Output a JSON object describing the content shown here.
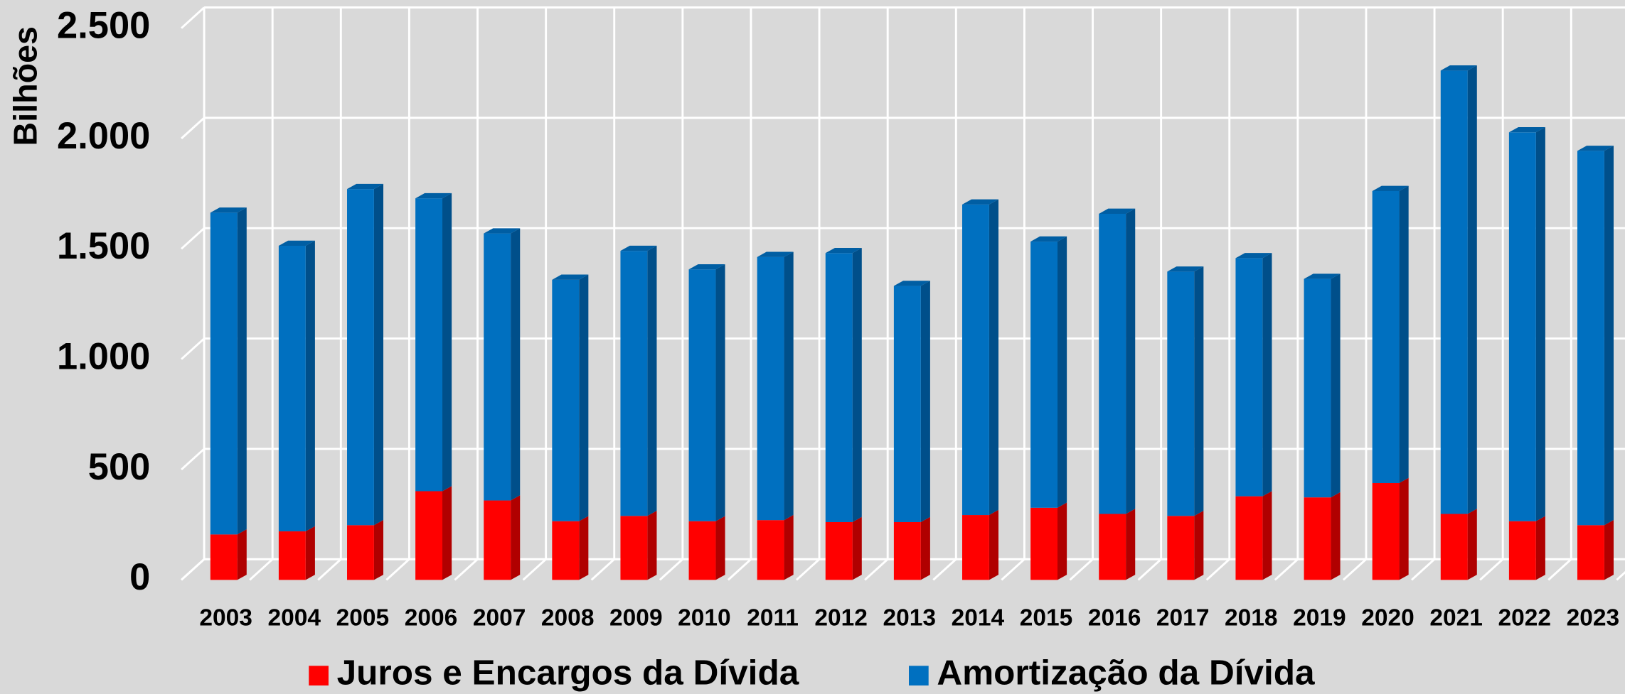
{
  "chart_data": {
    "type": "bar",
    "stacked": true,
    "y_label": "Bilhões",
    "categories": [
      "2003",
      "2004",
      "2005",
      "2006",
      "2007",
      "2008",
      "2009",
      "2010",
      "2011",
      "2012",
      "2013",
      "2014",
      "2015",
      "2016",
      "2017",
      "2018",
      "2019",
      "2020",
      "2021",
      "2022",
      "2023"
    ],
    "series": [
      {
        "name": "Juros e Encargos da Dívida",
        "color": "#ff0000",
        "values": [
          206,
          220,
          248,
          402,
          360,
          266,
          290,
          266,
          271,
          262,
          262,
          294,
          327,
          299,
          290,
          379,
          374,
          439,
          299,
          266,
          248
        ]
      },
      {
        "name": "Amortização da Dívida",
        "color": "#0070c0",
        "values": [
          1458,
          1294,
          1523,
          1327,
          1210,
          1094,
          1201,
          1141,
          1192,
          1219,
          1070,
          1407,
          1206,
          1360,
          1107,
          1079,
          990,
          1323,
          2009,
          1762,
          1696
        ]
      }
    ],
    "ylim": [
      0,
      2500
    ],
    "yticks": [
      0,
      500,
      {
        "value": 1000,
        "label": "1.000"
      },
      {
        "value": 1500,
        "label": "1.500"
      },
      {
        "value": 2000,
        "label": "2.000"
      },
      {
        "value": 2500,
        "label": "2.500"
      }
    ],
    "grid": true,
    "legend": "bottom"
  }
}
